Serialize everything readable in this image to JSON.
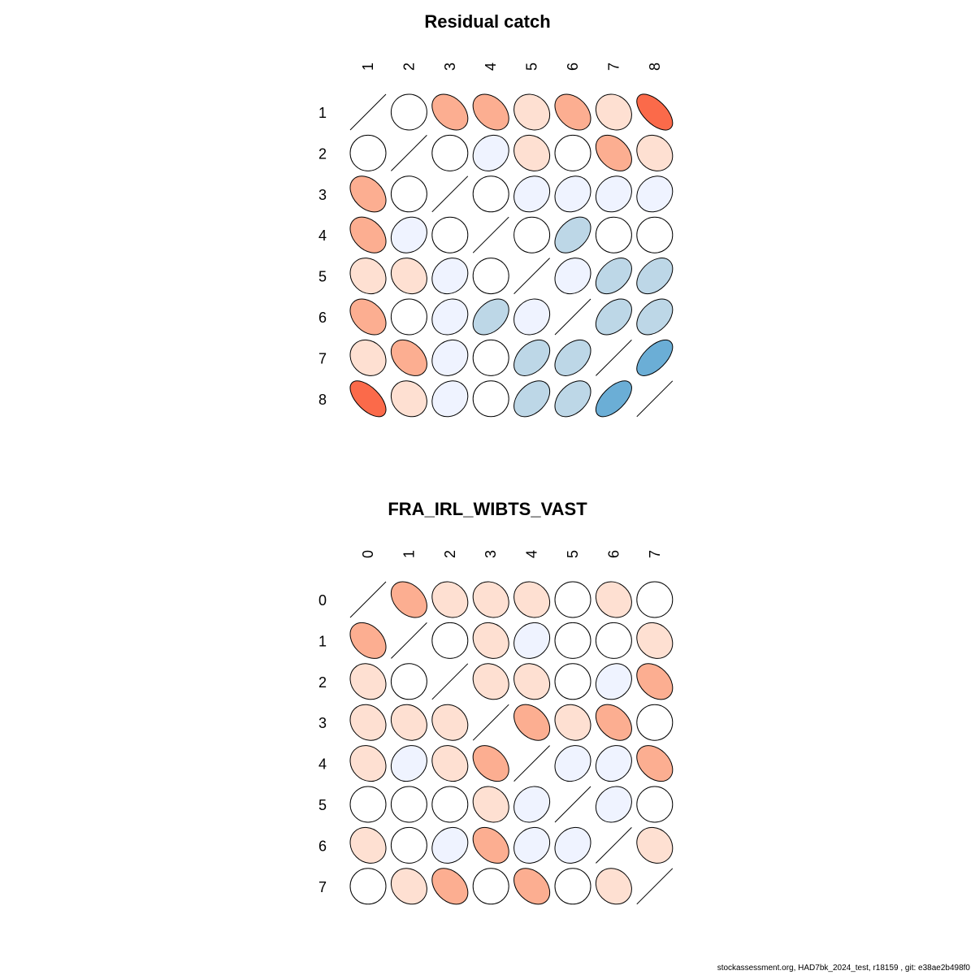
{
  "chart_data": [
    {
      "type": "heatmap",
      "subtype": "correlation-ellipse",
      "title": "Residual catch",
      "labels": [
        "1",
        "2",
        "3",
        "4",
        "5",
        "6",
        "7",
        "8"
      ],
      "color_scale": {
        "negative": [
          "#FEE0D2",
          "#FCAE91",
          "#FB6A4A"
        ],
        "zero": "#FFFFFF",
        "positive": [
          "#EFF3FF",
          "#BDD7E7",
          "#6BAED6"
        ]
      },
      "matrix": [
        [
          1,
          0,
          -0.35,
          -0.35,
          -0.15,
          -0.35,
          -0.15,
          -0.6
        ],
        [
          0,
          1,
          0,
          0.15,
          -0.15,
          0,
          -0.35,
          -0.15
        ],
        [
          -0.35,
          0,
          1,
          0,
          0.15,
          0.15,
          0.15,
          0.15
        ],
        [
          -0.35,
          0.15,
          0,
          1,
          0,
          0.4,
          0,
          0
        ],
        [
          -0.15,
          -0.15,
          0.15,
          0,
          1,
          0.15,
          0.4,
          0.4
        ],
        [
          -0.35,
          0,
          0.15,
          0.4,
          0.15,
          1,
          0.4,
          0.4
        ],
        [
          -0.15,
          -0.35,
          0.15,
          0,
          0.4,
          0.4,
          1,
          0.6
        ],
        [
          -0.6,
          -0.15,
          0.15,
          0,
          0.4,
          0.4,
          0.6,
          1
        ]
      ]
    },
    {
      "type": "heatmap",
      "subtype": "correlation-ellipse",
      "title": "FRA_IRL_WIBTS_VAST",
      "labels": [
        "0",
        "1",
        "2",
        "3",
        "4",
        "5",
        "6",
        "7"
      ],
      "color_scale": {
        "negative": [
          "#FEE0D2",
          "#FCAE91",
          "#FB6A4A"
        ],
        "zero": "#FFFFFF",
        "positive": [
          "#EFF3FF",
          "#BDD7E7",
          "#6BAED6"
        ]
      },
      "matrix": [
        [
          1,
          -0.35,
          -0.15,
          -0.15,
          -0.15,
          0,
          -0.15,
          0
        ],
        [
          -0.35,
          1,
          0,
          -0.15,
          0.15,
          0,
          0,
          -0.15
        ],
        [
          -0.15,
          0,
          1,
          -0.15,
          -0.15,
          0,
          0.15,
          -0.35
        ],
        [
          -0.15,
          -0.15,
          -0.15,
          1,
          -0.35,
          -0.15,
          -0.35,
          0
        ],
        [
          -0.15,
          0.15,
          -0.15,
          -0.35,
          1,
          0.15,
          0.15,
          -0.35
        ],
        [
          0,
          0,
          0,
          -0.15,
          0.15,
          1,
          0.15,
          0
        ],
        [
          -0.15,
          0,
          0.15,
          -0.35,
          0.15,
          0.15,
          1,
          -0.15
        ],
        [
          0,
          -0.15,
          -0.35,
          0,
          -0.35,
          0,
          -0.15,
          1
        ]
      ]
    }
  ],
  "footer": "stockassessment.org, HAD7bk_2024_test, r18159 , git: e38ae2b498f0"
}
